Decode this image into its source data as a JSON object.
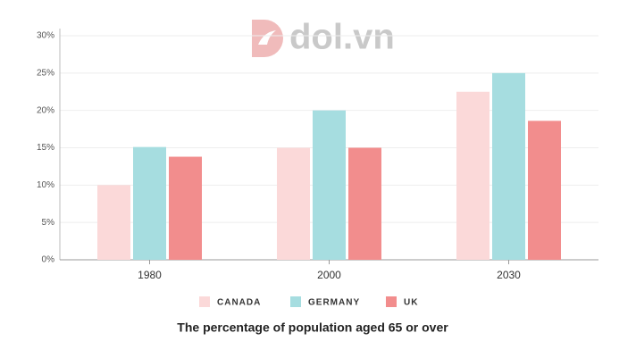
{
  "chart_data": {
    "type": "bar",
    "title": "The percentage of population aged 65 or over",
    "watermark": "dol.vn",
    "categories": [
      "1980",
      "2000",
      "2030"
    ],
    "series": [
      {
        "name": "CANADA",
        "color": "#fbd9d9",
        "values": [
          10,
          15,
          22.5
        ]
      },
      {
        "name": "GERMANY",
        "color": "#a6dde0",
        "values": [
          15.1,
          20,
          25
        ]
      },
      {
        "name": "UK",
        "color": "#f28d8d",
        "values": [
          13.8,
          15,
          18.6
        ]
      }
    ],
    "ylim": [
      0,
      30
    ],
    "yticks": [
      {
        "value": 0,
        "label": "0%"
      },
      {
        "value": 5,
        "label": "5%"
      },
      {
        "value": 10,
        "label": "10%"
      },
      {
        "value": 15,
        "label": "15%"
      },
      {
        "value": 20,
        "label": "20%"
      },
      {
        "value": 25,
        "label": "25%"
      },
      {
        "value": 30,
        "label": "30%"
      }
    ],
    "grid": true
  }
}
